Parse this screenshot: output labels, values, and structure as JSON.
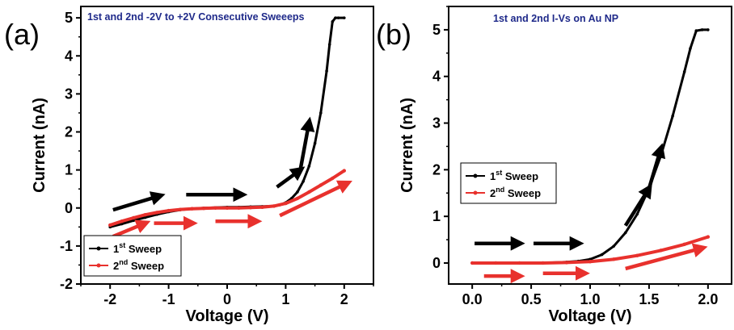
{
  "colors": {
    "sweep1": "#000000",
    "sweep2": "#e8312d",
    "title": "#1f2a8a",
    "annotation_arrow_black": "#000000",
    "annotation_arrow_red": "#e8312d"
  },
  "chart_data": [
    {
      "panel_label": "(a)",
      "type": "line",
      "title": "1st and 2nd -2V to +2V Consecutive Sweeeps",
      "xlabel": "Voltage (V)",
      "ylabel": "Current (nA)",
      "xlim": [
        -2.5,
        2.5
      ],
      "ylim": [
        -2,
        5.3
      ],
      "xticks": [
        -2,
        -1,
        0,
        1,
        2
      ],
      "xtick_labels": [
        "-2",
        "-1",
        "0",
        "1",
        "2"
      ],
      "yticks": [
        -2,
        -1,
        0,
        1,
        2,
        3,
        4,
        5
      ],
      "ytick_labels": [
        "-2",
        "-1",
        "0",
        "1",
        "2",
        "3",
        "4",
        "5"
      ],
      "legend": {
        "placement": "bottom-left",
        "entries": [
          {
            "base": "1",
            "sup": "st",
            "rest": " Sweep"
          },
          {
            "base": "2",
            "sup": "nd",
            "rest": " Sweep"
          }
        ]
      },
      "series": [
        {
          "name": "1st Sweep",
          "color": "#000000",
          "x": [
            -2.0,
            -1.8,
            -1.6,
            -1.4,
            -1.2,
            -1.0,
            -0.8,
            -0.6,
            -0.4,
            -0.2,
            0.0,
            0.2,
            0.4,
            0.6,
            0.8,
            0.9,
            1.0,
            1.1,
            1.2,
            1.3,
            1.4,
            1.5,
            1.6,
            1.7,
            1.75,
            1.8,
            1.85,
            1.9,
            2.0
          ],
          "y": [
            -0.5,
            -0.42,
            -0.33,
            -0.25,
            -0.17,
            -0.1,
            -0.05,
            -0.02,
            0.0,
            0.01,
            0.02,
            0.02,
            0.03,
            0.04,
            0.05,
            0.08,
            0.14,
            0.25,
            0.42,
            0.7,
            1.1,
            1.7,
            2.5,
            3.6,
            4.3,
            4.9,
            5.0,
            5.0,
            5.0
          ]
        },
        {
          "name": "2nd Sweep",
          "color": "#e8312d",
          "x": [
            -2.0,
            -1.8,
            -1.6,
            -1.4,
            -1.2,
            -1.0,
            -0.8,
            -0.6,
            -0.4,
            -0.2,
            0.0,
            0.2,
            0.4,
            0.6,
            0.8,
            1.0,
            1.2,
            1.4,
            1.6,
            1.8,
            2.0
          ],
          "y": [
            -0.45,
            -0.35,
            -0.26,
            -0.18,
            -0.12,
            -0.07,
            -0.04,
            -0.02,
            -0.01,
            0.0,
            0.0,
            0.0,
            0.01,
            0.02,
            0.05,
            0.12,
            0.25,
            0.42,
            0.6,
            0.78,
            0.98
          ]
        }
      ],
      "annotation_arrows": [
        {
          "color": "black",
          "from": [
            -1.95,
            -0.05
          ],
          "to": [
            -1.15,
            0.32
          ]
        },
        {
          "color": "black",
          "from": [
            -0.7,
            0.35
          ],
          "to": [
            0.25,
            0.35
          ]
        },
        {
          "color": "black",
          "from": [
            0.85,
            0.55
          ],
          "to": [
            1.25,
            1.0
          ]
        },
        {
          "color": "black",
          "from": [
            1.25,
            1.0
          ],
          "to": [
            1.4,
            2.25
          ]
        },
        {
          "color": "red",
          "from": [
            -1.95,
            -0.75
          ],
          "to": [
            -1.4,
            -0.4
          ]
        },
        {
          "color": "red",
          "from": [
            -1.25,
            -0.4
          ],
          "to": [
            -0.6,
            -0.4
          ]
        },
        {
          "color": "red",
          "from": [
            -0.2,
            -0.35
          ],
          "to": [
            0.5,
            -0.35
          ]
        },
        {
          "color": "red",
          "from": [
            0.9,
            -0.2
          ],
          "to": [
            2.05,
            0.65
          ]
        }
      ]
    },
    {
      "panel_label": "(b)",
      "type": "line",
      "title": "1st and 2nd I-Vs on Au NP",
      "xlabel": "Voltage (V)",
      "ylabel": "Current (nA)",
      "xlim": [
        -0.2,
        2.2
      ],
      "ylim": [
        -0.45,
        5.5
      ],
      "xticks": [
        0.0,
        0.5,
        1.0,
        1.5,
        2.0
      ],
      "xtick_labels": [
        "0.0",
        "0.5",
        "1.0",
        "1.5",
        "2.0"
      ],
      "yticks": [
        0,
        1,
        2,
        3,
        4,
        5
      ],
      "ytick_labels": [
        "0",
        "1",
        "2",
        "3",
        "4",
        "5"
      ],
      "legend": {
        "placement": "middle-left",
        "entries": [
          {
            "base": "1",
            "sup": "st",
            "rest": " Sweep"
          },
          {
            "base": "2",
            "sup": "nd",
            "rest": " Sweep"
          }
        ]
      },
      "series": [
        {
          "name": "1st Sweep",
          "color": "#000000",
          "x": [
            0.0,
            0.2,
            0.4,
            0.6,
            0.8,
            0.9,
            1.0,
            1.1,
            1.2,
            1.3,
            1.4,
            1.5,
            1.6,
            1.7,
            1.8,
            1.85,
            1.9,
            1.95,
            2.0
          ],
          "y": [
            0.0,
            0.0,
            0.0,
            0.0,
            0.02,
            0.04,
            0.08,
            0.18,
            0.36,
            0.65,
            1.05,
            1.6,
            2.3,
            3.15,
            4.1,
            4.6,
            4.98,
            5.0,
            5.0
          ]
        },
        {
          "name": "2nd Sweep",
          "color": "#e8312d",
          "x": [
            0.0,
            0.2,
            0.4,
            0.6,
            0.8,
            1.0,
            1.2,
            1.4,
            1.6,
            1.8,
            2.0
          ],
          "y": [
            0.0,
            0.0,
            0.0,
            0.0,
            0.01,
            0.03,
            0.08,
            0.16,
            0.27,
            0.4,
            0.56
          ]
        }
      ],
      "annotation_arrows": [
        {
          "color": "black",
          "from": [
            0.02,
            0.42
          ],
          "to": [
            0.4,
            0.42
          ]
        },
        {
          "color": "black",
          "from": [
            0.52,
            0.42
          ],
          "to": [
            0.9,
            0.42
          ]
        },
        {
          "color": "black",
          "from": [
            1.3,
            0.8
          ],
          "to": [
            1.5,
            1.6
          ]
        },
        {
          "color": "black",
          "from": [
            1.5,
            1.6
          ],
          "to": [
            1.6,
            2.45
          ]
        },
        {
          "color": "red",
          "from": [
            0.1,
            -0.28
          ],
          "to": [
            0.4,
            -0.28
          ]
        },
        {
          "color": "red",
          "from": [
            0.6,
            -0.22
          ],
          "to": [
            0.95,
            -0.22
          ]
        },
        {
          "color": "red",
          "from": [
            1.3,
            -0.12
          ],
          "to": [
            1.95,
            0.32
          ]
        }
      ]
    }
  ]
}
